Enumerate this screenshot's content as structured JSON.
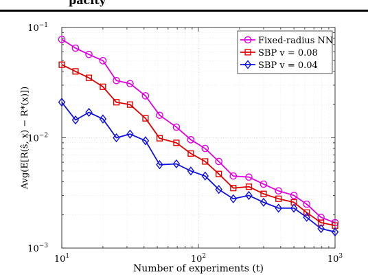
{
  "header": {
    "text": "pacity"
  },
  "chart_data": {
    "type": "line",
    "xscale": "log",
    "yscale": "log",
    "xlim": [
      10,
      1000
    ],
    "ylim": [
      0.001,
      0.1
    ],
    "xlabel": "Number of experiments (t)",
    "ylabel": "Avg(E[R(ŝ, x) − R*(x)])",
    "x_ticks": [
      {
        "base": "10",
        "exp": "1"
      },
      {
        "base": "10",
        "exp": "2"
      },
      {
        "base": "10",
        "exp": "3"
      }
    ],
    "y_ticks": [
      {
        "base": "10",
        "exp": "−3"
      },
      {
        "base": "10",
        "exp": "−2"
      },
      {
        "base": "10",
        "exp": "−1"
      }
    ],
    "grid": true,
    "legend_position": "top-right",
    "series": [
      {
        "name": "Fixed-radius NN",
        "color": "#e000e0",
        "marker": "circle",
        "x": [
          10,
          12.6,
          15.8,
          20,
          25.1,
          31.6,
          41,
          52,
          69,
          88,
          112,
          141,
          180,
          234,
          300,
          386,
          500,
          620,
          790,
          1000
        ],
        "y": [
          0.078,
          0.065,
          0.057,
          0.05,
          0.033,
          0.031,
          0.024,
          0.016,
          0.0125,
          0.0096,
          0.008,
          0.0061,
          0.0045,
          0.0044,
          0.0038,
          0.0033,
          0.003,
          0.0025,
          0.0019,
          0.0017
        ]
      },
      {
        "name": "SBP v = 0.08",
        "color": "#e00000",
        "marker": "square",
        "x": [
          10,
          12.6,
          15.8,
          20,
          25.1,
          31.6,
          41,
          52,
          69,
          88,
          112,
          141,
          180,
          234,
          300,
          386,
          500,
          620,
          790,
          1000
        ],
        "y": [
          0.046,
          0.04,
          0.035,
          0.029,
          0.021,
          0.02,
          0.015,
          0.0099,
          0.009,
          0.0072,
          0.0061,
          0.0047,
          0.0035,
          0.0036,
          0.0031,
          0.0028,
          0.0026,
          0.0021,
          0.0017,
          0.0016
        ]
      },
      {
        "name": "SBP v = 0.04",
        "color": "#1010e0",
        "marker": "diamond",
        "x": [
          10,
          12.6,
          15.8,
          20,
          25.1,
          31.6,
          41,
          52,
          69,
          88,
          112,
          141,
          180,
          234,
          300,
          386,
          500,
          620,
          790,
          1000
        ],
        "y": [
          0.021,
          0.0145,
          0.017,
          0.0148,
          0.01,
          0.0108,
          0.0094,
          0.0057,
          0.0058,
          0.005,
          0.0045,
          0.0034,
          0.0028,
          0.003,
          0.0026,
          0.0023,
          0.0023,
          0.0019,
          0.0015,
          0.0014
        ]
      }
    ]
  }
}
